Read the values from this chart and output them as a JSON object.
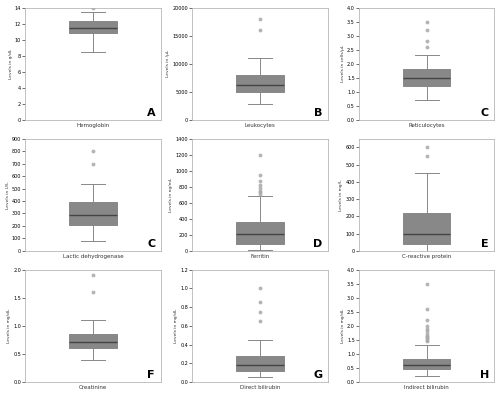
{
  "panels": [
    {
      "label": "A",
      "title": "Hemoglobin",
      "ylabel": "Levels in g/dL",
      "med": 11.5,
      "q1": 10.8,
      "q3": 12.3,
      "whislo": 8.5,
      "whishi": 13.5,
      "fliers_hi": [
        13.9
      ],
      "fliers_lo": [],
      "ylim": [
        0.0,
        14.0
      ],
      "yticks": [
        0.0,
        2.0,
        4.0,
        6.0,
        8.0,
        10.0,
        12.0,
        14.0
      ]
    },
    {
      "label": "B",
      "title": "Leukocytes",
      "ylabel": "Levels in /μL",
      "med": 6200,
      "q1": 5000,
      "q3": 8000,
      "whislo": 2800,
      "whishi": 11000,
      "fliers_hi": [
        16000,
        18000
      ],
      "fliers_lo": [],
      "ylim": [
        0,
        20000
      ],
      "yticks": [
        0,
        5000,
        10000,
        15000,
        20000
      ]
    },
    {
      "label": "C",
      "title": "Reticulocytes",
      "ylabel": "Levels in cells/μL",
      "med": 1.5,
      "q1": 1.2,
      "q3": 1.8,
      "whislo": 0.7,
      "whishi": 2.3,
      "fliers_hi": [
        3.2,
        3.5,
        2.8,
        2.6
      ],
      "fliers_lo": [],
      "ylim": [
        0.0,
        4.0
      ],
      "yticks": [
        0.0,
        0.5,
        1.0,
        1.5,
        2.0,
        2.5,
        3.0,
        3.5,
        4.0
      ]
    },
    {
      "label": "C",
      "title": "Lactic dehydrogenase",
      "ylabel": "Levels in U/L",
      "med": 290,
      "q1": 210,
      "q3": 390,
      "whislo": 80,
      "whishi": 540,
      "fliers_hi": [
        800,
        700
      ],
      "fliers_lo": [],
      "ylim": [
        0,
        900
      ],
      "yticks": [
        0,
        100,
        200,
        300,
        400,
        500,
        600,
        700,
        800,
        900
      ]
    },
    {
      "label": "D",
      "title": "Ferritin",
      "ylabel": "Levels in ng/mL",
      "med": 210,
      "q1": 90,
      "q3": 360,
      "whislo": 5,
      "whishi": 680,
      "fliers_hi": [
        1200,
        950,
        870,
        820,
        780,
        750,
        730,
        710
      ],
      "fliers_lo": [],
      "ylim": [
        0,
        1400
      ],
      "yticks": [
        0,
        200,
        400,
        600,
        800,
        1000,
        1200,
        1400
      ]
    },
    {
      "label": "E",
      "title": "C-reactive protein",
      "ylabel": "Levels in mg/L",
      "med": 100,
      "q1": 40,
      "q3": 220,
      "whislo": 2,
      "whishi": 450,
      "fliers_hi": [
        550,
        600
      ],
      "fliers_lo": [],
      "ylim": [
        0,
        650
      ],
      "yticks": [
        0,
        100,
        200,
        300,
        400,
        500,
        600
      ]
    },
    {
      "label": "F",
      "title": "Creatinine",
      "ylabel": "Levels in mg/dL",
      "med": 0.72,
      "q1": 0.6,
      "q3": 0.85,
      "whislo": 0.4,
      "whishi": 1.1,
      "fliers_hi": [
        1.9,
        1.6
      ],
      "fliers_lo": [],
      "ylim": [
        0.0,
        2.0
      ],
      "yticks": [
        0.0,
        0.5,
        1.0,
        1.5,
        2.0
      ]
    },
    {
      "label": "G",
      "title": "Direct bilirubin",
      "ylabel": "Levels in mg/dL",
      "med": 0.18,
      "q1": 0.12,
      "q3": 0.28,
      "whislo": 0.05,
      "whishi": 0.45,
      "fliers_hi": [
        0.85,
        0.75,
        0.65,
        1.0
      ],
      "fliers_lo": [],
      "ylim": [
        0.0,
        1.2
      ],
      "yticks": [
        0.0,
        0.2,
        0.4,
        0.6,
        0.8,
        1.0,
        1.2
      ]
    },
    {
      "label": "H",
      "title": "Indirect bilirubin",
      "ylabel": "Levels in mg/dL",
      "med": 0.62,
      "q1": 0.45,
      "q3": 0.82,
      "whislo": 0.2,
      "whishi": 1.3,
      "fliers_hi": [
        3.5,
        2.6,
        2.2,
        2.0,
        1.9,
        1.8,
        1.7,
        1.65,
        1.6,
        1.55,
        1.5,
        1.45
      ],
      "fliers_lo": [],
      "ylim": [
        0.0,
        4.0
      ],
      "yticks": [
        0.0,
        0.5,
        1.0,
        1.5,
        2.0,
        2.5,
        3.0,
        3.5,
        4.0
      ]
    }
  ],
  "line_color": "#888888",
  "median_color": "#444444",
  "flier_color": "#aaaaaa",
  "face_color": "white",
  "spine_color": "#aaaaaa"
}
